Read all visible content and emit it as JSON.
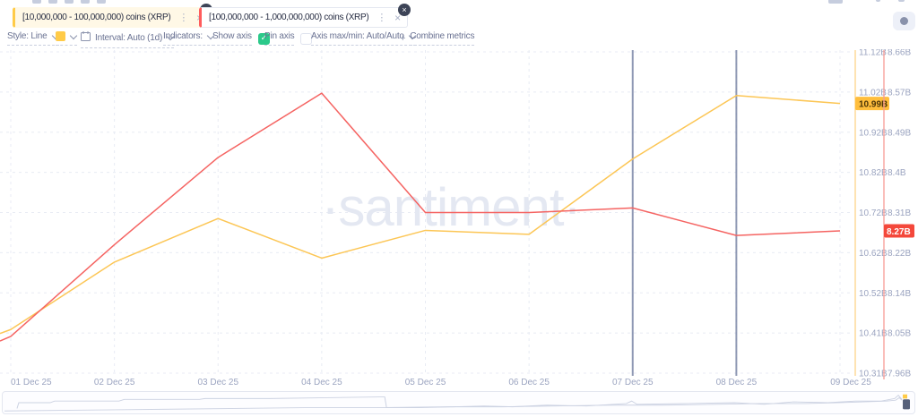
{
  "tabs": [
    {
      "label": "[10,000,000 - 100,000,000) coins (XRP)",
      "accent_color": "#ffcb48",
      "bg_color": "#fff8e6"
    },
    {
      "label": "[100,000,000 - 1,000,000,000) coins (XRP)",
      "accent_color": "#ff5c5c",
      "bg_color": "#ffffff"
    }
  ],
  "icons": {
    "kebab": "⋮",
    "close": "×",
    "remove": "×",
    "check": "✓",
    "plus": "+"
  },
  "toolbar": {
    "style_label": "Style: Line",
    "swatch_color": "#ffcb48",
    "interval_label": "Interval: Auto (1d)",
    "indicators_label": "Indicators:",
    "show_axis_label": "Show axis",
    "show_axis_checked": true,
    "pin_axis_label": "Pin axis",
    "pin_axis_checked": false,
    "axis_maxmin_label": "Axis max/min: Auto/Auto",
    "combine_label": "Combine metrics"
  },
  "watermark": "·santiment·",
  "chart_data": {
    "type": "line",
    "grid": "dashed",
    "x_labels": [
      "01 Dec 25",
      "02 Dec 25",
      "03 Dec 25",
      "04 Dec 25",
      "05 Dec 25",
      "06 Dec 25",
      "07 Dec 25",
      "08 Dec 25",
      "09 Dec 25"
    ],
    "vertical_marker_dates": [
      "07 Dec 25",
      "08 Dec 25"
    ],
    "series": [
      {
        "name": "[10,000,000 - 100,000,000) coins (XRP)",
        "color": "#fcc655",
        "axis_line_color": "#fdd488",
        "badge_bg": "#ffbe3c",
        "badge_text_color": "#4a3408",
        "edge_value": 10.41,
        "values_billions": [
          10.42,
          10.59,
          10.7,
          10.6,
          10.67,
          10.66,
          10.85,
          11.01,
          10.99
        ],
        "axis": {
          "min": 10.31,
          "max": 11.12,
          "last_badge": "10.99B",
          "ticks": [
            "11.12B",
            "11.02B",
            "10.92B",
            "10.82B",
            "10.72B",
            "10.62B",
            "10.52B",
            "10.41B",
            "10.31B"
          ]
        }
      },
      {
        "name": "[100,000,000 - 1,000,000,000) coins (XRP)",
        "color": "#f56462",
        "axis_line_color": "#f79b96",
        "badge_bg": "#f4483b",
        "badge_text_color": "#ffffff",
        "edge_value": 8.03,
        "values_billions": [
          8.04,
          8.24,
          8.43,
          8.57,
          8.31,
          8.31,
          8.32,
          8.26,
          8.27
        ],
        "axis": {
          "min": 7.96,
          "max": 8.66,
          "last_badge": "8.27B",
          "ticks": [
            "8.66B",
            "8.57B",
            "8.49B",
            "8.4B",
            "8.31B",
            "8.22B",
            "8.14B",
            "8.05B",
            "7.96B"
          ]
        }
      }
    ]
  },
  "minimap": {
    "sparkline_color": "#ccd2e2",
    "handle_color": "#566079",
    "tick_color": "#ffcb48",
    "lines": [
      [
        [
          18,
          457
        ],
        [
          20,
          450
        ],
        [
          55,
          450
        ],
        [
          60,
          448
        ],
        [
          132,
          448
        ],
        [
          138,
          446
        ],
        [
          222,
          446
        ],
        [
          228,
          445
        ],
        [
          300,
          445
        ],
        [
          365,
          444
        ],
        [
          424,
          443
        ],
        [
          429,
          443
        ],
        [
          431,
          456
        ],
        [
          468,
          456
        ],
        [
          505,
          455
        ],
        [
          540,
          454
        ],
        [
          572,
          455
        ],
        [
          610,
          453
        ],
        [
          655,
          454
        ],
        [
          699,
          451
        ],
        [
          705,
          448
        ],
        [
          711,
          452
        ],
        [
          768,
          451
        ],
        [
          820,
          450
        ],
        [
          853,
          452
        ],
        [
          886,
          449
        ],
        [
          924,
          450
        ],
        [
          955,
          448
        ],
        [
          984,
          448
        ],
        [
          999,
          445
        ],
        [
          1003,
          441
        ],
        [
          1007,
          446
        ]
      ],
      [
        [
          4,
          460
        ],
        [
          90,
          459
        ],
        [
          180,
          458
        ],
        [
          260,
          457
        ],
        [
          340,
          456
        ],
        [
          420,
          456
        ],
        [
          500,
          455
        ],
        [
          560,
          455
        ],
        [
          620,
          454
        ],
        [
          680,
          453
        ],
        [
          740,
          453
        ],
        [
          800,
          452
        ],
        [
          850,
          451
        ],
        [
          900,
          451
        ],
        [
          935,
          450
        ],
        [
          965,
          449
        ],
        [
          990,
          448
        ],
        [
          1000,
          447
        ],
        [
          1004,
          444
        ],
        [
          1007,
          447
        ]
      ]
    ]
  }
}
